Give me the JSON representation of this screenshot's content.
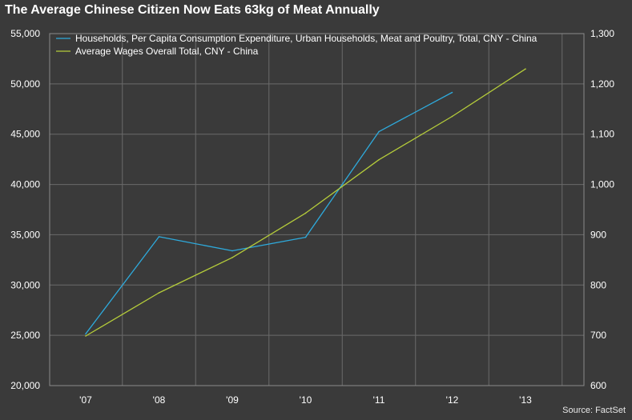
{
  "chart_data": {
    "type": "line",
    "title": "The Average Chinese Citizen Now Eats 63kg of Meat Annually",
    "source": "Source: FactSet",
    "categories": [
      "'07",
      "'08",
      "'09",
      "'10",
      "'11",
      "'12",
      "'13"
    ],
    "left_axis": {
      "ylim": [
        20000,
        55000
      ],
      "ticks": [
        "20,000",
        "25,000",
        "30,000",
        "35,000",
        "40,000",
        "45,000",
        "50,000",
        "55,000"
      ]
    },
    "right_axis": {
      "ylim": [
        600,
        1300
      ],
      "ticks": [
        "600",
        "700",
        "800",
        "900",
        "1,000",
        "1,100",
        "1,200",
        "1,300"
      ]
    },
    "grid": true,
    "legend_position": "top-left",
    "series": [
      {
        "name": "Households, Per Capita Consumption Expenditure, Urban Households, Meat and Poultry, Total, CNY - China",
        "axis": "right",
        "color": "#2eaadc",
        "x": [
          2007,
          2008,
          2009,
          2010,
          2011,
          2012
        ],
        "values": [
          703,
          896,
          868,
          895,
          1105,
          1183
        ]
      },
      {
        "name": "Average Wages Overall Total, CNY - China",
        "axis": "left",
        "color": "#b5cc3a",
        "x": [
          2007,
          2008,
          2009,
          2010,
          2011,
          2012,
          2013
        ],
        "values": [
          24932,
          29229,
          32736,
          37147,
          42452,
          46769,
          51483
        ]
      }
    ]
  }
}
